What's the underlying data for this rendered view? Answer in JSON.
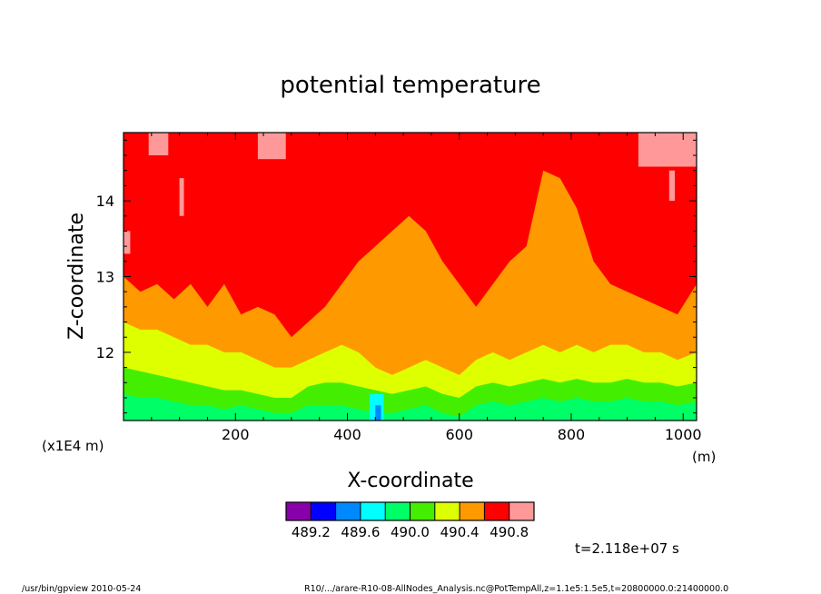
{
  "chart_data": {
    "type": "heatmap",
    "title": "potential temperature",
    "xlabel": "X-coordinate",
    "ylabel": "Z-coordinate",
    "x_unit": "(m)",
    "y_unit": "(x1E4 m)",
    "xlim": [
      0,
      1024
    ],
    "ylim": [
      11.1,
      14.9
    ],
    "x_ticks": [
      {
        "value": 200,
        "label": "200"
      },
      {
        "value": 400,
        "label": "400"
      },
      {
        "value": 600,
        "label": "600"
      },
      {
        "value": 800,
        "label": "800"
      },
      {
        "value": 1000,
        "label": "1000"
      }
    ],
    "y_ticks": [
      {
        "value": 12,
        "label": "12"
      },
      {
        "value": 13,
        "label": "13"
      },
      {
        "value": 14,
        "label": "14"
      }
    ],
    "colorbar": {
      "colors": [
        "#8800aa",
        "#0000ff",
        "#0088ff",
        "#00ffff",
        "#00ff66",
        "#44ee00",
        "#ddff00",
        "#ff9900",
        "#ff0000",
        "#ff9999"
      ],
      "labels": [
        "489.2",
        "489.6",
        "490.0",
        "490.4",
        "490.8"
      ]
    },
    "profile_x": [
      0,
      30,
      60,
      90,
      120,
      150,
      180,
      210,
      240,
      270,
      300,
      330,
      360,
      390,
      420,
      450,
      480,
      510,
      540,
      570,
      600,
      630,
      660,
      690,
      720,
      750,
      780,
      810,
      840,
      870,
      900,
      930,
      960,
      990,
      1024
    ],
    "orange_top": [
      13.0,
      12.8,
      12.9,
      12.7,
      12.9,
      12.6,
      12.9,
      12.5,
      12.6,
      12.5,
      12.2,
      12.4,
      12.6,
      12.9,
      13.2,
      13.4,
      13.6,
      13.8,
      13.6,
      13.2,
      12.9,
      12.6,
      12.9,
      13.2,
      13.4,
      14.4,
      14.3,
      13.9,
      13.2,
      12.9,
      12.8,
      12.7,
      12.6,
      12.5,
      12.9
    ],
    "yellow_top": [
      12.4,
      12.3,
      12.3,
      12.2,
      12.1,
      12.1,
      12.0,
      12.0,
      11.9,
      11.8,
      11.8,
      11.9,
      12.0,
      12.1,
      12.0,
      11.8,
      11.7,
      11.8,
      11.9,
      11.8,
      11.7,
      11.9,
      12.0,
      11.9,
      12.0,
      12.1,
      12.0,
      12.1,
      12.0,
      12.1,
      12.1,
      12.0,
      12.0,
      11.9,
      12.0
    ],
    "green_top": [
      11.8,
      11.75,
      11.7,
      11.65,
      11.6,
      11.55,
      11.5,
      11.5,
      11.45,
      11.4,
      11.4,
      11.55,
      11.6,
      11.6,
      11.55,
      11.5,
      11.45,
      11.5,
      11.55,
      11.45,
      11.4,
      11.55,
      11.6,
      11.55,
      11.6,
      11.65,
      11.6,
      11.65,
      11.6,
      11.6,
      11.65,
      11.6,
      11.6,
      11.55,
      11.6
    ],
    "springgreen_top": [
      11.45,
      11.4,
      11.4,
      11.35,
      11.3,
      11.3,
      11.25,
      11.3,
      11.25,
      11.2,
      11.2,
      11.3,
      11.3,
      11.3,
      11.25,
      11.2,
      11.2,
      11.25,
      11.3,
      11.2,
      11.15,
      11.3,
      11.35,
      11.3,
      11.35,
      11.4,
      11.35,
      11.4,
      11.35,
      11.35,
      11.4,
      11.35,
      11.35,
      11.3,
      11.35
    ],
    "pink_patches": [
      {
        "x": [
          45,
          80
        ],
        "z": [
          14.6,
          14.9
        ]
      },
      {
        "x": [
          240,
          290
        ],
        "z": [
          14.55,
          14.9
        ]
      },
      {
        "x": [
          920,
          1024
        ],
        "z": [
          14.45,
          14.9
        ]
      },
      {
        "x": [
          0,
          12
        ],
        "z": [
          13.3,
          13.6
        ]
      },
      {
        "x": [
          100,
          108
        ],
        "z": [
          13.8,
          14.3
        ]
      },
      {
        "x": [
          975,
          985
        ],
        "z": [
          14.0,
          14.4
        ]
      }
    ],
    "cyan_patches": [
      {
        "x": [
          440,
          465
        ],
        "z": [
          11.1,
          11.45
        ]
      }
    ],
    "blue_patches": [
      {
        "x": [
          450,
          460
        ],
        "z": [
          11.1,
          11.3
        ]
      }
    ],
    "time_label": "t=2.118e+07 s",
    "footer_left": "/usr/bin/gpview   2010-05-24",
    "footer_right": "R10/.../arare-R10-08-AllNodes_Analysis.nc@PotTempAll,z=1.1e5:1.5e5,t=20800000.0:21400000.0"
  }
}
